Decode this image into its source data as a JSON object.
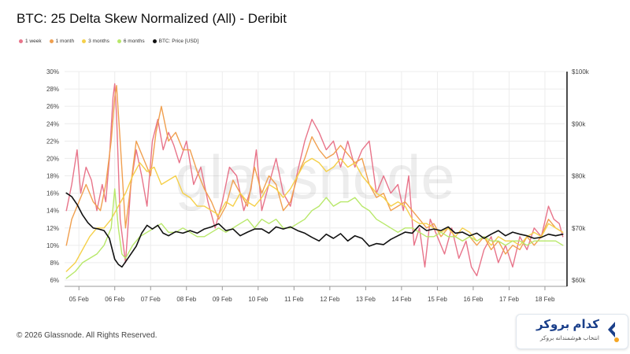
{
  "header": {
    "title": "BTC: 25 Delta Skew Normalized (All) - Deribit"
  },
  "legend": [
    {
      "label": "1 week",
      "color": "#e8748a"
    },
    {
      "label": "1 month",
      "color": "#f0a050"
    },
    {
      "label": "3 months",
      "color": "#f5d04a"
    },
    {
      "label": "6 months",
      "color": "#b8e86a"
    },
    {
      "label": "BTC: Price [USD]",
      "color": "#111111"
    }
  ],
  "watermark": "glassnode",
  "footer": {
    "copyright": "© 2026 Glassnode. All Rights Reserved."
  },
  "brand": {
    "name": "کدام بروکر",
    "tagline": "انتخاب هوشمندانه بروکر",
    "logo_icon": "broker-logo-icon",
    "accent": "#1a3f8a"
  },
  "chart_data": {
    "type": "line",
    "title": "BTC: 25 Delta Skew Normalized (All) - Deribit",
    "x_ticks": [
      "05 Feb",
      "06 Feb",
      "07 Feb",
      "08 Feb",
      "09 Feb",
      "10 Feb",
      "11 Feb",
      "12 Feb",
      "13 Feb",
      "14 Feb",
      "15 Feb",
      "16 Feb",
      "17 Feb",
      "18 Feb"
    ],
    "x_range": [
      4.6,
      18.55
    ],
    "y_left": {
      "min": 6,
      "max": 30,
      "ticks": [
        "6%",
        "8%",
        "10%",
        "12%",
        "14%",
        "16%",
        "18%",
        "20%",
        "22%",
        "24%",
        "26%",
        "28%",
        "30%"
      ]
    },
    "y_right": {
      "min": 60000,
      "max": 100000,
      "ticks": [
        "$60k",
        "$70k",
        "$80k",
        "$90k",
        "$100k"
      ]
    },
    "grid": true,
    "legend_position": "top-left",
    "series": [
      {
        "name": "1 week",
        "color": "#e8748a",
        "axis": "left",
        "x": [
          4.65,
          4.8,
          4.95,
          5.05,
          5.2,
          5.35,
          5.5,
          5.65,
          5.75,
          5.85,
          5.95,
          6.0,
          6.05,
          6.15,
          6.3,
          6.45,
          6.6,
          6.75,
          6.9,
          7.05,
          7.2,
          7.35,
          7.5,
          7.65,
          7.8,
          8.0,
          8.2,
          8.4,
          8.6,
          8.8,
          9.0,
          9.2,
          9.4,
          9.6,
          9.8,
          9.95,
          10.1,
          10.3,
          10.5,
          10.7,
          10.9,
          11.1,
          11.3,
          11.5,
          11.7,
          11.9,
          12.1,
          12.3,
          12.5,
          12.7,
          12.9,
          13.1,
          13.3,
          13.5,
          13.7,
          13.9,
          14.05,
          14.2,
          14.35,
          14.5,
          14.65,
          14.8,
          15.0,
          15.2,
          15.4,
          15.6,
          15.8,
          15.95,
          16.1,
          16.3,
          16.5,
          16.7,
          16.9,
          17.1,
          17.3,
          17.5,
          17.7,
          17.9,
          18.1,
          18.25,
          18.4,
          18.5
        ],
        "y": [
          14,
          17,
          21,
          16,
          19,
          17.5,
          14,
          17,
          15,
          20,
          27,
          28.6,
          25,
          13,
          8,
          17,
          21,
          18,
          14.5,
          22,
          24.5,
          21,
          23,
          21.5,
          19.5,
          22,
          17,
          19,
          15,
          12,
          15,
          19,
          18,
          14,
          16.5,
          21,
          14,
          17,
          20,
          16,
          14.5,
          18.5,
          22,
          24.5,
          23,
          21,
          22,
          19,
          22,
          19,
          21,
          22,
          16,
          18,
          16,
          17,
          14,
          18,
          10,
          12,
          7.5,
          13,
          11,
          9,
          12,
          8.5,
          10.5,
          7.5,
          6.5,
          9.5,
          11,
          8,
          10,
          7.5,
          11,
          9.5,
          12,
          11,
          14.5,
          13,
          12.5,
          11
        ]
      },
      {
        "name": "1 month",
        "color": "#f0a050",
        "axis": "left",
        "x": [
          4.65,
          4.8,
          5.0,
          5.2,
          5.4,
          5.6,
          5.75,
          5.9,
          6.0,
          6.05,
          6.15,
          6.3,
          6.45,
          6.6,
          6.8,
          7.0,
          7.15,
          7.3,
          7.5,
          7.7,
          7.9,
          8.1,
          8.3,
          8.5,
          8.7,
          8.9,
          9.1,
          9.3,
          9.5,
          9.7,
          9.9,
          10.1,
          10.3,
          10.5,
          10.7,
          10.9,
          11.1,
          11.3,
          11.5,
          11.7,
          11.9,
          12.1,
          12.3,
          12.5,
          12.7,
          12.9,
          13.1,
          13.3,
          13.5,
          13.7,
          13.9,
          14.1,
          14.3,
          14.5,
          14.7,
          14.9,
          15.1,
          15.3,
          15.5,
          15.7,
          15.9,
          16.1,
          16.3,
          16.5,
          16.7,
          16.9,
          17.1,
          17.3,
          17.5,
          17.7,
          17.9,
          18.1,
          18.3,
          18.5
        ],
        "y": [
          10,
          13,
          15,
          17,
          15,
          14,
          17,
          22,
          27,
          28.4,
          22,
          12,
          17,
          22,
          20,
          18,
          23,
          26,
          22,
          23,
          21,
          21,
          18.5,
          16.5,
          15,
          13,
          14.5,
          17.5,
          16,
          14.5,
          19,
          16,
          18,
          17,
          14,
          15,
          18,
          20,
          22.5,
          21,
          20,
          20.5,
          21.5,
          20.5,
          19.5,
          20,
          17,
          15.5,
          16,
          14,
          14.5,
          15,
          14,
          13,
          12,
          12.5,
          11,
          12,
          11,
          10.5,
          11,
          10,
          11,
          9.5,
          10.5,
          9,
          10,
          9.5,
          11,
          10,
          11,
          13,
          12,
          11.5
        ]
      },
      {
        "name": "3 months",
        "color": "#f5d04a",
        "axis": "left",
        "x": [
          4.65,
          4.9,
          5.1,
          5.3,
          5.5,
          5.7,
          5.9,
          6.1,
          6.3,
          6.5,
          6.7,
          6.9,
          7.1,
          7.3,
          7.5,
          7.7,
          7.9,
          8.1,
          8.3,
          8.5,
          8.7,
          8.9,
          9.1,
          9.3,
          9.5,
          9.7,
          9.9,
          10.1,
          10.3,
          10.5,
          10.7,
          10.9,
          11.1,
          11.3,
          11.5,
          11.7,
          11.9,
          12.1,
          12.3,
          12.5,
          12.7,
          12.9,
          13.1,
          13.3,
          13.5,
          13.7,
          13.9,
          14.1,
          14.3,
          14.5,
          14.7,
          14.9,
          15.1,
          15.3,
          15.5,
          15.7,
          15.9,
          16.1,
          16.3,
          16.5,
          16.7,
          16.9,
          17.1,
          17.3,
          17.5,
          17.7,
          17.9,
          18.1,
          18.3,
          18.5
        ],
        "y": [
          7,
          8,
          9.5,
          11,
          12,
          12,
          13,
          14.5,
          16,
          18,
          19.5,
          18.5,
          19,
          17,
          17.5,
          18,
          16,
          15.5,
          14.5,
          14.5,
          14,
          13.5,
          15,
          14.5,
          16,
          15,
          14.5,
          15.5,
          17,
          16.5,
          15.5,
          16.5,
          18,
          19.5,
          20,
          19.5,
          18.5,
          19,
          20,
          19,
          19.5,
          18,
          17,
          16,
          15.5,
          14.5,
          15,
          14.5,
          13,
          12.5,
          12.5,
          12,
          11.5,
          12,
          11,
          12,
          11.5,
          10.5,
          11,
          10,
          11,
          10.5,
          10.5,
          10,
          11,
          11.5,
          11,
          12.5,
          12,
          11.5
        ]
      },
      {
        "name": "6 months",
        "color": "#b8e86a",
        "axis": "left",
        "x": [
          4.65,
          4.9,
          5.1,
          5.3,
          5.5,
          5.7,
          5.9,
          6.0,
          6.1,
          6.2,
          6.3,
          6.5,
          6.7,
          6.9,
          7.1,
          7.3,
          7.5,
          7.7,
          7.9,
          8.1,
          8.3,
          8.5,
          8.7,
          8.9,
          9.1,
          9.3,
          9.5,
          9.7,
          9.9,
          10.1,
          10.3,
          10.5,
          10.7,
          10.9,
          11.1,
          11.3,
          11.5,
          11.7,
          11.9,
          12.1,
          12.3,
          12.5,
          12.7,
          12.9,
          13.1,
          13.3,
          13.5,
          13.7,
          13.9,
          14.1,
          14.3,
          14.5,
          14.7,
          14.9,
          15.1,
          15.3,
          15.5,
          15.7,
          15.9,
          16.1,
          16.3,
          16.5,
          16.7,
          16.9,
          17.1,
          17.3,
          17.5,
          17.7,
          17.9,
          18.1,
          18.3,
          18.5
        ],
        "y": [
          6.2,
          7,
          8,
          8.5,
          9,
          10,
          12,
          16.5,
          12,
          9,
          8.5,
          10,
          11,
          11.5,
          12,
          12.5,
          11.5,
          11.5,
          12,
          11.5,
          11,
          11,
          11.5,
          12,
          11.5,
          12,
          12.5,
          13,
          12,
          13,
          12.5,
          13,
          12,
          12,
          12.5,
          13,
          14,
          14.5,
          15.5,
          14.5,
          15,
          15,
          15.5,
          14.5,
          14,
          13,
          12.5,
          12,
          11.5,
          12,
          12,
          11.5,
          11,
          11,
          11.5,
          11,
          11,
          10.5,
          11,
          10.5,
          11,
          10.5,
          10.5,
          10,
          10.5,
          10.5,
          10,
          10.5,
          10.5,
          10.5,
          10.5,
          10
        ]
      },
      {
        "name": "BTC: Price [USD]",
        "color": "#111111",
        "axis": "right",
        "x": [
          4.65,
          4.8,
          4.95,
          5.1,
          5.25,
          5.4,
          5.55,
          5.7,
          5.85,
          6.0,
          6.1,
          6.2,
          6.3,
          6.45,
          6.6,
          6.75,
          6.9,
          7.05,
          7.2,
          7.35,
          7.5,
          7.7,
          7.9,
          8.1,
          8.3,
          8.5,
          8.7,
          8.9,
          9.1,
          9.3,
          9.5,
          9.7,
          9.9,
          10.1,
          10.3,
          10.5,
          10.7,
          10.9,
          11.1,
          11.3,
          11.5,
          11.7,
          11.9,
          12.1,
          12.3,
          12.5,
          12.7,
          12.9,
          13.1,
          13.3,
          13.5,
          13.7,
          13.9,
          14.1,
          14.3,
          14.5,
          14.7,
          14.9,
          15.1,
          15.3,
          15.5,
          15.7,
          15.9,
          16.1,
          16.3,
          16.5,
          16.7,
          16.9,
          17.1,
          17.3,
          17.5,
          17.7,
          17.9,
          18.1,
          18.3,
          18.5
        ],
        "y": [
          76700,
          76000,
          74500,
          72500,
          71000,
          70000,
          69800,
          69500,
          68000,
          64000,
          63000,
          62500,
          63500,
          65000,
          66500,
          69000,
          70500,
          69800,
          70500,
          69000,
          68500,
          69300,
          69000,
          69500,
          69000,
          69800,
          70200,
          70800,
          69500,
          69800,
          68500,
          69200,
          69800,
          69800,
          69000,
          70200,
          69800,
          70200,
          69500,
          69000,
          68200,
          67500,
          68800,
          68000,
          68900,
          67500,
          68500,
          68000,
          66500,
          67000,
          66800,
          67800,
          68500,
          69200,
          69000,
          70500,
          69500,
          69800,
          69500,
          70200,
          69000,
          69200,
          68500,
          69000,
          68000,
          68800,
          69500,
          68500,
          69200,
          68800,
          68500,
          68000,
          68200,
          68800,
          68500,
          68800
        ]
      }
    ]
  }
}
